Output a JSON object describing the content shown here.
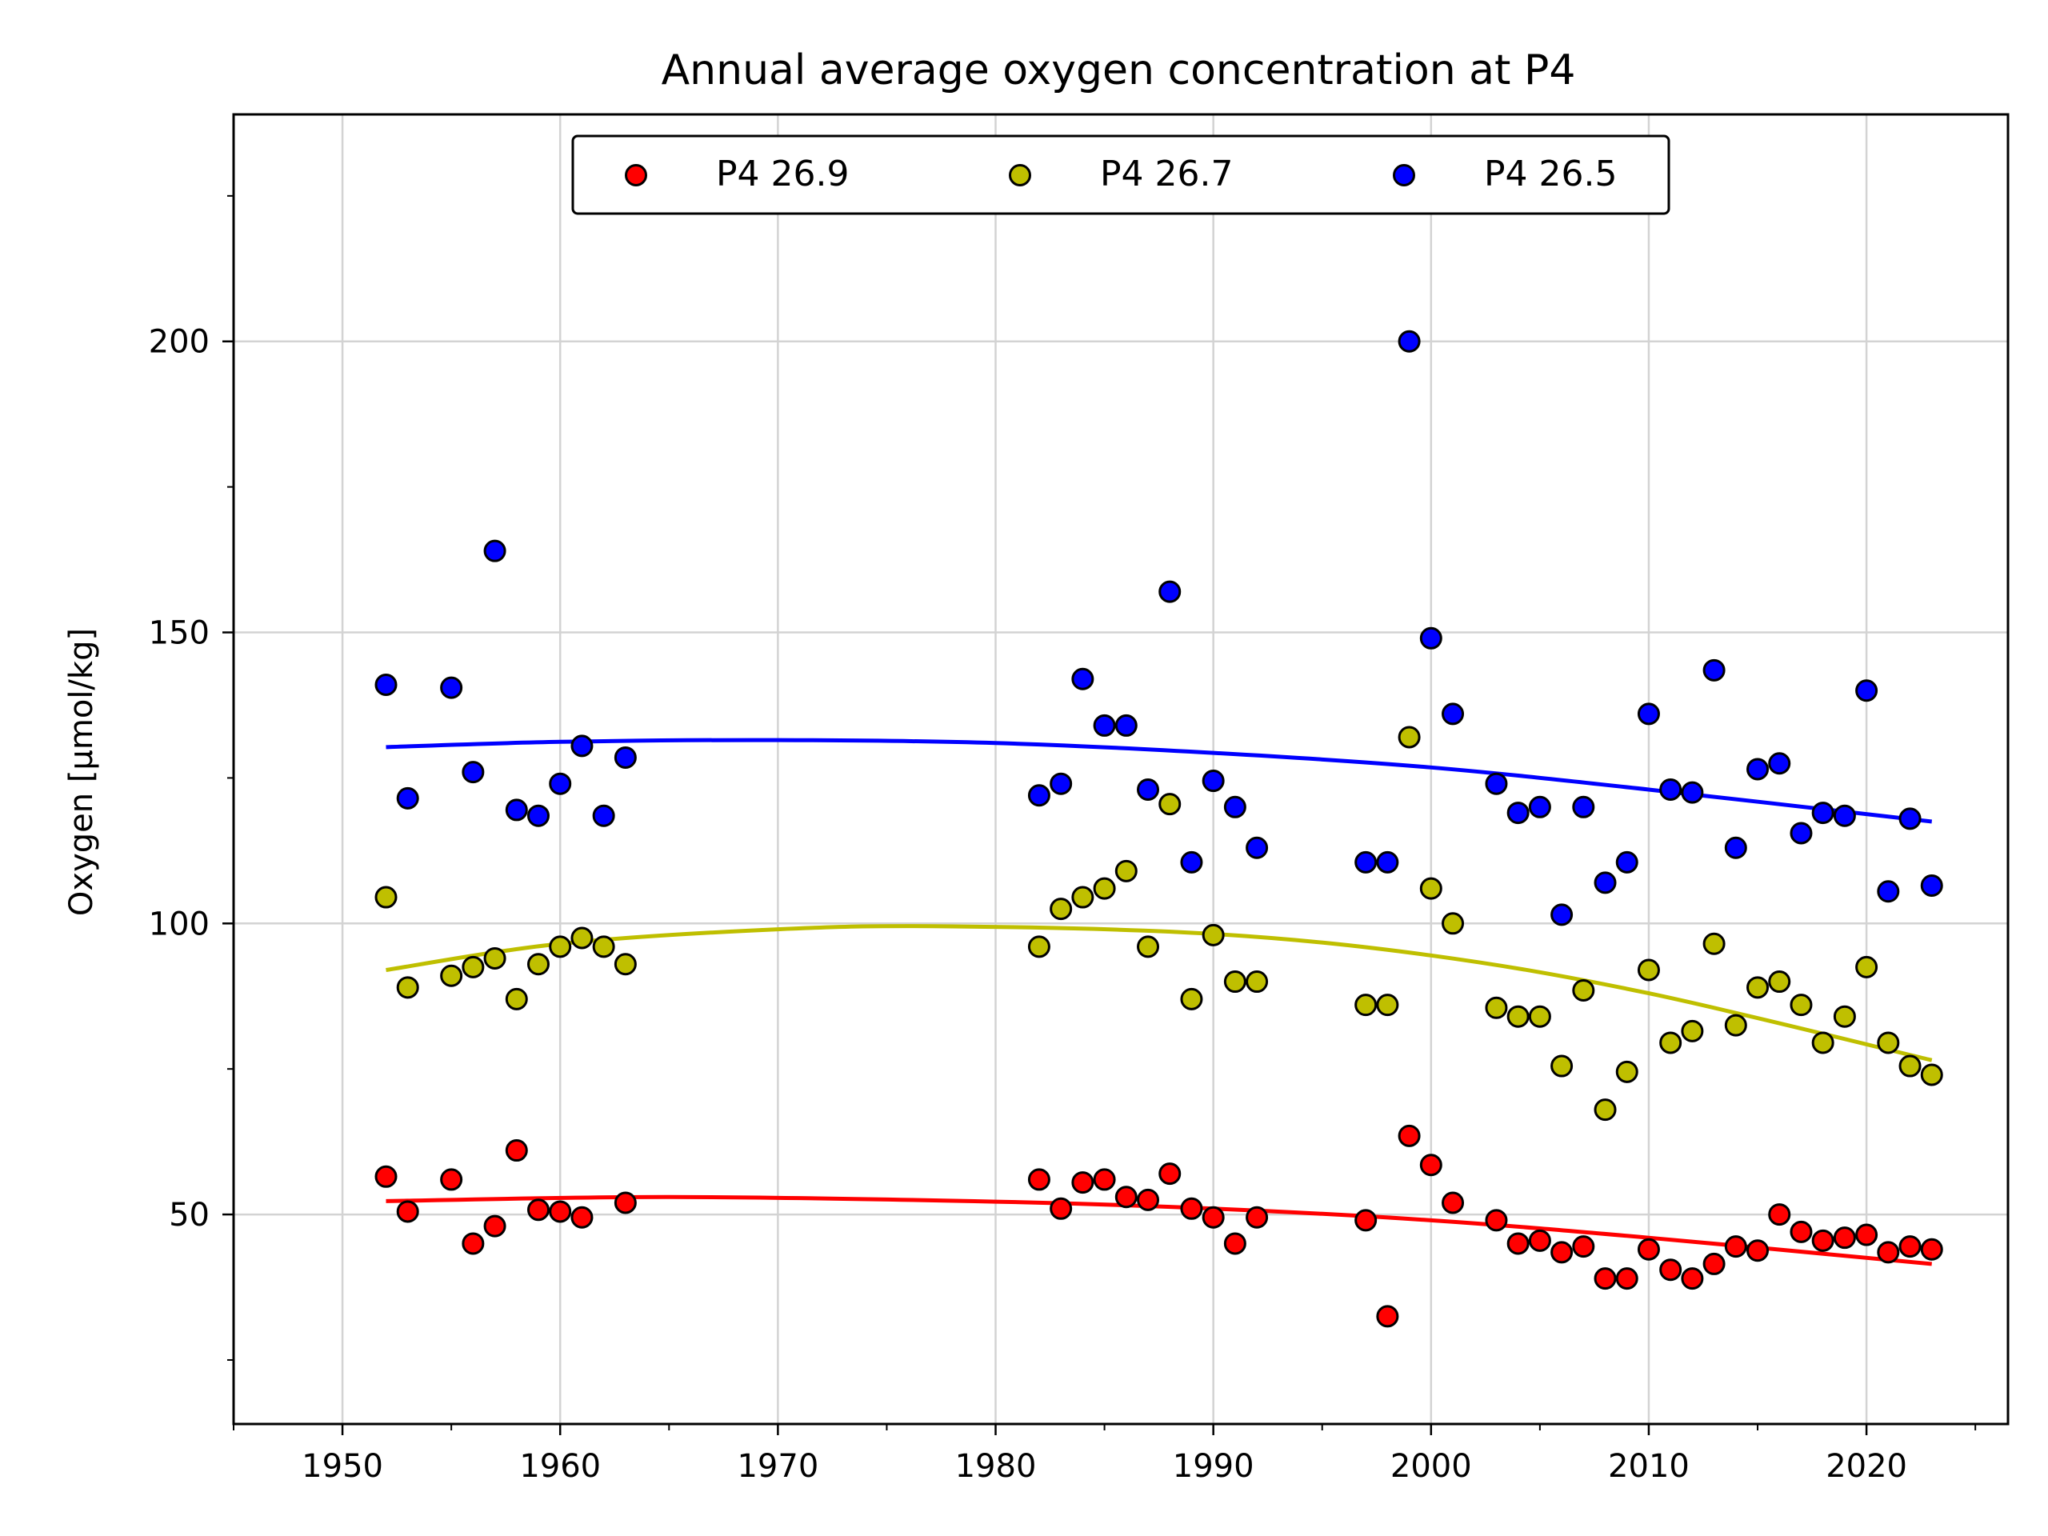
{
  "chart_data": {
    "type": "scatter",
    "title": "Annual average oxygen concentration at P4",
    "xlabel": "",
    "ylabel": "Oxygen [μmol/kg]",
    "xlim": [
      1945,
      2026.5
    ],
    "ylim": [
      14,
      239
    ],
    "x_ticks": [
      1950,
      1960,
      1970,
      1980,
      1990,
      2000,
      2010,
      2020
    ],
    "x_tick_labels": [
      "1950",
      "1960",
      "1970",
      "1980",
      "1990",
      "2000",
      "2010",
      "2020"
    ],
    "y_ticks": [
      50,
      100,
      150,
      200
    ],
    "y_tick_labels": [
      "50",
      "100",
      "150",
      "200"
    ],
    "grid": true,
    "legend": {
      "placement": "top-center",
      "columns": 3
    },
    "series": [
      {
        "name": "P4 26.9",
        "color": "#ff0000",
        "x": [
          1952,
          1953,
          1955,
          1956,
          1957,
          1958,
          1959,
          1960,
          1961,
          1963,
          1982,
          1983,
          1984,
          1985,
          1986,
          1987,
          1988,
          1989,
          1990,
          1991,
          1992,
          1997,
          1998,
          1999,
          2000,
          2001,
          2003,
          2004,
          2005,
          2006,
          2007,
          2008,
          2009,
          2010,
          2011,
          2012,
          2013,
          2014,
          2015,
          2016,
          2017,
          2018,
          2019,
          2020,
          2021,
          2022,
          2023
        ],
        "y": [
          56.5,
          50.5,
          56,
          45,
          48,
          61,
          50.8,
          50.5,
          49.5,
          52,
          56,
          51,
          55.5,
          56,
          53,
          52.5,
          57,
          51,
          49.5,
          45,
          49.5,
          49,
          32.5,
          63.5,
          58.5,
          52,
          49,
          45,
          45.5,
          43.5,
          44.5,
          39,
          39,
          44,
          40.5,
          39,
          41.5,
          44.5,
          43.8,
          50,
          47,
          45.5,
          46,
          46.5,
          43.5,
          44.5,
          44
        ],
        "fit": {
          "x": [
            1952,
            1965,
            1980,
            1990,
            2000,
            2010,
            2023
          ],
          "y": [
            52.3,
            53.0,
            52.2,
            51.0,
            49.0,
            46.0,
            41.5
          ]
        }
      },
      {
        "name": "P4 26.7",
        "color": "#bfbf00",
        "x": [
          1952,
          1953,
          1955,
          1956,
          1957,
          1958,
          1959,
          1960,
          1961,
          1962,
          1963,
          1982,
          1983,
          1984,
          1985,
          1986,
          1987,
          1988,
          1989,
          1990,
          1991,
          1992,
          1997,
          1998,
          1999,
          2000,
          2001,
          2003,
          2004,
          2005,
          2006,
          2007,
          2008,
          2009,
          2010,
          2011,
          2012,
          2013,
          2014,
          2015,
          2016,
          2017,
          2018,
          2019,
          2020,
          2021,
          2022,
          2023
        ],
        "y": [
          104.5,
          89,
          91,
          92.5,
          94,
          87,
          93,
          96,
          97.5,
          96,
          93,
          96,
          102.5,
          104.5,
          106,
          109,
          96,
          120.5,
          87,
          98,
          90,
          90,
          86,
          86,
          132,
          106,
          100,
          85.5,
          84,
          84,
          75.5,
          88.5,
          68,
          74.5,
          92,
          79.5,
          81.5,
          96.5,
          82.5,
          89,
          90,
          86,
          79.5,
          84,
          92.5,
          79.5,
          75.5,
          74
        ],
        "fit": {
          "x": [
            1952,
            1960,
            1970,
            1978,
            1990,
            2000,
            2010,
            2023
          ],
          "y": [
            92,
            96.5,
            99,
            99.5,
            98.2,
            94.5,
            88,
            76.5
          ]
        }
      },
      {
        "name": "P4 26.5",
        "color": "#0000ff",
        "x": [
          1952,
          1953,
          1955,
          1956,
          1957,
          1958,
          1959,
          1960,
          1961,
          1962,
          1963,
          1982,
          1983,
          1984,
          1985,
          1986,
          1987,
          1988,
          1989,
          1990,
          1991,
          1992,
          1997,
          1998,
          1999,
          2000,
          2001,
          2003,
          2004,
          2005,
          2006,
          2007,
          2008,
          2009,
          2010,
          2011,
          2012,
          2013,
          2014,
          2015,
          2016,
          2017,
          2018,
          2019,
          2020,
          2021,
          2022,
          2023
        ],
        "y": [
          141,
          121.5,
          140.5,
          126,
          164,
          119.5,
          118.5,
          124,
          130.5,
          118.5,
          128.5,
          122,
          124,
          142,
          134,
          134,
          123,
          157,
          110.5,
          124.5,
          120,
          113,
          110.5,
          110.5,
          200,
          149,
          136,
          124,
          119,
          120,
          101.5,
          120,
          107,
          110.5,
          136,
          123,
          122.5,
          143.5,
          113,
          126.5,
          127.5,
          115.5,
          119,
          118.5,
          140,
          105.5,
          118,
          106.5
        ],
        "fit": {
          "x": [
            1952,
            1960,
            1970,
            1980,
            1990,
            2000,
            2010,
            2023
          ],
          "y": [
            130.3,
            131.2,
            131.5,
            131.0,
            129.3,
            126.8,
            123.0,
            117.5
          ]
        }
      }
    ]
  }
}
